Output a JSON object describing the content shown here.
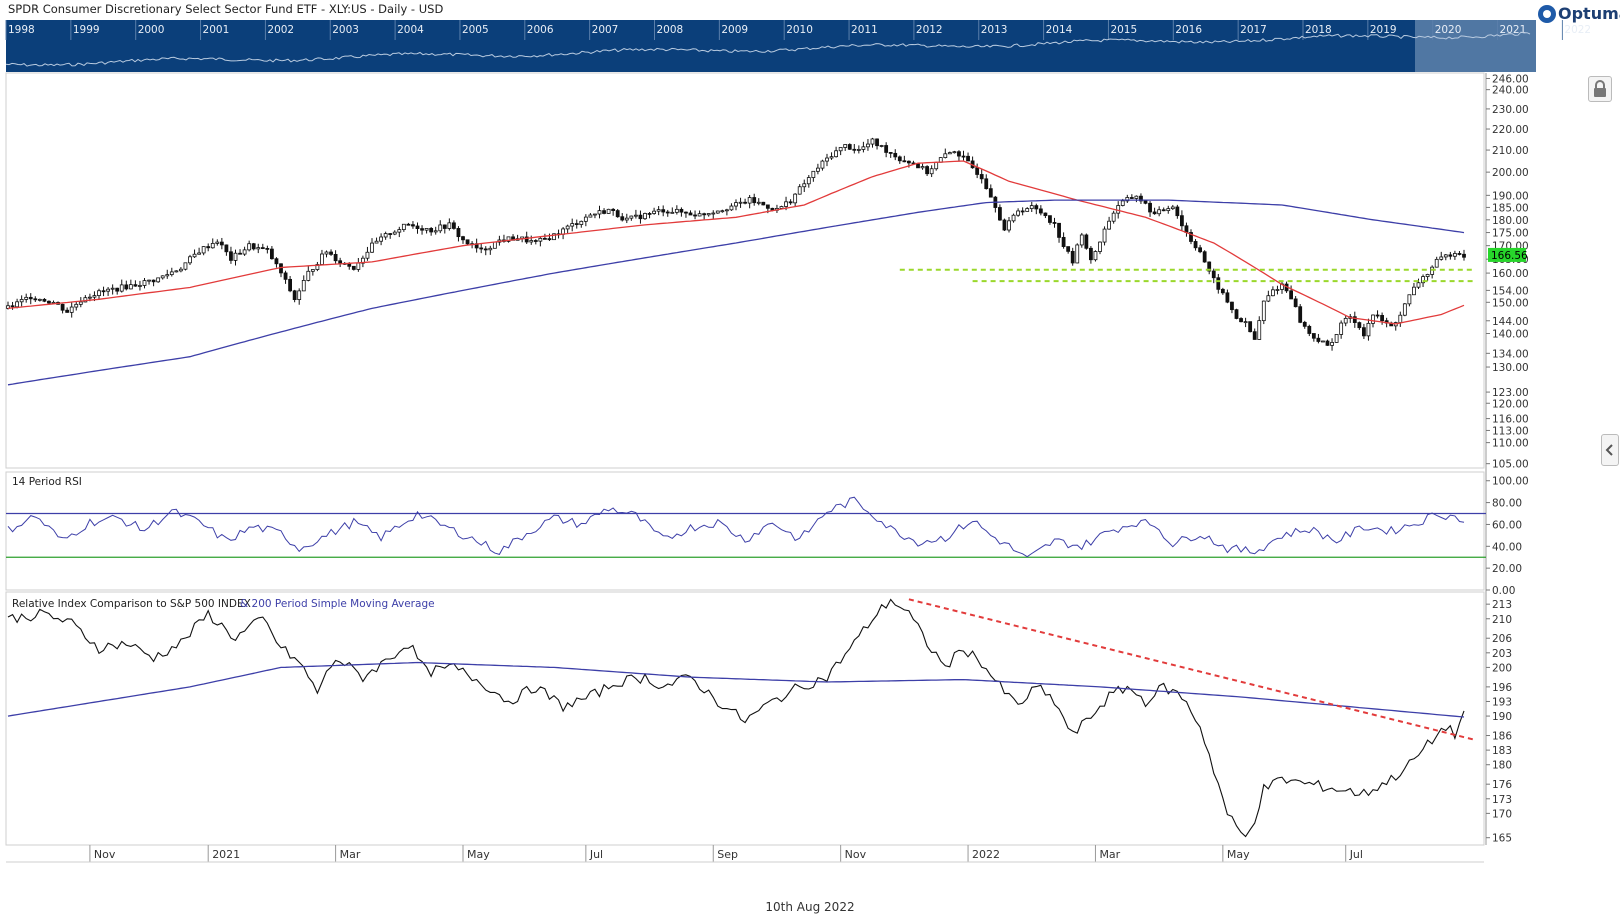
{
  "header": {
    "title": "SPDR Consumer Discretionary Select Sector Fund ETF - XLY:US - Daily - USD",
    "brand": "Optuma",
    "date": "10th Aug 2022"
  },
  "colors": {
    "navigator_bg": "#0b3f7a",
    "ma_fast": "#e23b3b",
    "ma_slow": "#3d3fa8",
    "price": "#111111",
    "support": "#9ad82b",
    "last_price_bg": "#27d62b",
    "rsi_upper": "#3d3fa8",
    "rsi_lower": "#2ea02e",
    "trend": "#e23b3b",
    "grid": "#e8e8e8"
  },
  "navigator": {
    "years": [
      "1998",
      "1999",
      "2000",
      "2001",
      "2002",
      "2003",
      "2004",
      "2005",
      "2006",
      "2007",
      "2008",
      "2009",
      "2010",
      "2011",
      "2012",
      "2013",
      "2014",
      "2015",
      "2016",
      "2017",
      "2018",
      "2019",
      "2020",
      "2021",
      "2022"
    ]
  },
  "chart_data": [
    {
      "type": "candlestick",
      "panel": "price",
      "title": "SPDR Consumer Discretionary Select Sector Fund ETF - XLY:US - Daily - USD",
      "y_scale": "log",
      "ylim": [
        104,
        249
      ],
      "y_ticks": [
        "246.00",
        "240.00",
        "230.00",
        "220.00",
        "210.00",
        "200.00",
        "190.00",
        "185.00",
        "180.00",
        "175.00",
        "170.00",
        "165.00",
        "160.00",
        "154.00",
        "150.00",
        "144.00",
        "140.00",
        "134.00",
        "130.00",
        "123.00",
        "120.00",
        "116.00",
        "113.00",
        "110.00",
        "105.00"
      ],
      "x_labels": [
        "Nov",
        "2021",
        "Mar",
        "May",
        "Jul",
        "Sep",
        "Nov",
        "2022",
        "Mar",
        "May",
        "Jul"
      ],
      "last_price": "166.56",
      "close_points": [
        [
          0,
          148
        ],
        [
          5,
          152
        ],
        [
          10,
          150
        ],
        [
          13,
          147
        ],
        [
          17,
          152
        ],
        [
          22,
          154
        ],
        [
          28,
          156
        ],
        [
          33,
          158
        ],
        [
          38,
          162
        ],
        [
          42,
          168
        ],
        [
          46,
          172
        ],
        [
          49,
          165
        ],
        [
          53,
          170
        ],
        [
          57,
          168
        ],
        [
          60,
          160
        ],
        [
          63,
          151
        ],
        [
          66,
          160
        ],
        [
          70,
          168
        ],
        [
          73,
          164
        ],
        [
          76,
          162
        ],
        [
          80,
          170
        ],
        [
          84,
          175
        ],
        [
          88,
          178
        ],
        [
          93,
          176
        ],
        [
          97,
          178
        ],
        [
          100,
          172
        ],
        [
          104,
          168
        ],
        [
          108,
          172
        ],
        [
          112,
          173
        ],
        [
          116,
          171
        ],
        [
          120,
          174
        ],
        [
          124,
          178
        ],
        [
          128,
          182
        ],
        [
          132,
          184
        ],
        [
          136,
          180
        ],
        [
          140,
          182
        ],
        [
          144,
          184
        ],
        [
          148,
          183
        ],
        [
          152,
          182
        ],
        [
          156,
          184
        ],
        [
          160,
          186
        ],
        [
          163,
          188
        ],
        [
          166,
          186
        ],
        [
          169,
          184
        ],
        [
          172,
          188
        ],
        [
          175,
          195
        ],
        [
          178,
          202
        ],
        [
          181,
          208
        ],
        [
          184,
          212
        ],
        [
          187,
          210
        ],
        [
          190,
          214
        ],
        [
          193,
          210
        ],
        [
          196,
          206
        ],
        [
          199,
          204
        ],
        [
          202,
          200
        ],
        [
          205,
          206
        ],
        [
          208,
          210
        ],
        [
          211,
          204
        ],
        [
          214,
          198
        ],
        [
          217,
          186
        ],
        [
          219,
          176
        ],
        [
          222,
          184
        ],
        [
          225,
          185
        ],
        [
          228,
          182
        ],
        [
          230,
          178
        ],
        [
          232,
          170
        ],
        [
          234,
          164
        ],
        [
          236,
          175
        ],
        [
          238,
          164
        ],
        [
          240,
          172
        ],
        [
          242,
          180
        ],
        [
          244,
          186
        ],
        [
          246,
          188
        ],
        [
          248,
          190
        ],
        [
          250,
          186
        ],
        [
          252,
          182
        ],
        [
          254,
          184
        ],
        [
          256,
          186
        ],
        [
          258,
          178
        ],
        [
          260,
          172
        ],
        [
          262,
          168
        ],
        [
          264,
          160
        ],
        [
          266,
          155
        ],
        [
          268,
          150
        ],
        [
          270,
          145
        ],
        [
          272,
          143
        ],
        [
          274,
          138
        ],
        [
          276,
          150
        ],
        [
          278,
          154
        ],
        [
          280,
          156
        ],
        [
          282,
          152
        ],
        [
          284,
          144
        ],
        [
          286,
          140
        ],
        [
          288,
          138
        ],
        [
          290,
          136
        ],
        [
          292,
          140
        ],
        [
          294,
          145
        ],
        [
          296,
          144
        ],
        [
          298,
          140
        ],
        [
          300,
          146
        ],
        [
          302,
          144
        ],
        [
          304,
          142
        ],
        [
          306,
          146
        ],
        [
          308,
          152
        ],
        [
          310,
          157
        ],
        [
          312,
          160
        ],
        [
          314,
          164
        ],
        [
          316,
          166
        ],
        [
          318,
          168
        ],
        [
          320,
          166.56
        ]
      ],
      "ma50_points": [
        [
          0,
          148
        ],
        [
          20,
          151
        ],
        [
          40,
          155
        ],
        [
          60,
          162
        ],
        [
          80,
          164
        ],
        [
          100,
          170
        ],
        [
          120,
          174
        ],
        [
          140,
          178
        ],
        [
          160,
          181
        ],
        [
          175,
          186
        ],
        [
          190,
          198
        ],
        [
          200,
          204
        ],
        [
          210,
          205
        ],
        [
          220,
          196
        ],
        [
          235,
          188
        ],
        [
          250,
          181
        ],
        [
          265,
          171
        ],
        [
          280,
          156
        ],
        [
          295,
          145
        ],
        [
          305,
          143
        ],
        [
          315,
          146
        ],
        [
          320,
          149
        ]
      ],
      "ma200_points": [
        [
          0,
          125
        ],
        [
          40,
          133
        ],
        [
          80,
          148
        ],
        [
          120,
          160
        ],
        [
          160,
          171
        ],
        [
          200,
          183
        ],
        [
          215,
          187
        ],
        [
          230,
          188
        ],
        [
          255,
          188
        ],
        [
          280,
          186
        ],
        [
          300,
          180
        ],
        [
          320,
          175
        ]
      ],
      "support_levels": [
        {
          "value": 161.2,
          "from": 196,
          "to": 322
        },
        {
          "value": 157.2,
          "from": 212,
          "to": 322
        }
      ]
    },
    {
      "type": "line",
      "panel": "rsi",
      "title": "14 Period RSI",
      "ylim": [
        0,
        108
      ],
      "y_ticks": [
        "100.00",
        "80.00",
        "60.00",
        "40.00",
        "20.00",
        "0.00"
      ],
      "upper_band": 70,
      "lower_band": 30,
      "points": [
        [
          0,
          55
        ],
        [
          6,
          68
        ],
        [
          12,
          45
        ],
        [
          18,
          62
        ],
        [
          24,
          66
        ],
        [
          30,
          55
        ],
        [
          36,
          72
        ],
        [
          42,
          62
        ],
        [
          48,
          45
        ],
        [
          54,
          58
        ],
        [
          60,
          52
        ],
        [
          64,
          38
        ],
        [
          70,
          50
        ],
        [
          76,
          62
        ],
        [
          82,
          48
        ],
        [
          90,
          70
        ],
        [
          96,
          58
        ],
        [
          102,
          47
        ],
        [
          108,
          35
        ],
        [
          114,
          52
        ],
        [
          120,
          66
        ],
        [
          126,
          60
        ],
        [
          132,
          75
        ],
        [
          138,
          68
        ],
        [
          144,
          46
        ],
        [
          150,
          57
        ],
        [
          156,
          62
        ],
        [
          162,
          46
        ],
        [
          168,
          62
        ],
        [
          174,
          46
        ],
        [
          180,
          72
        ],
        [
          186,
          82
        ],
        [
          190,
          70
        ],
        [
          194,
          56
        ],
        [
          200,
          44
        ],
        [
          206,
          48
        ],
        [
          212,
          64
        ],
        [
          216,
          50
        ],
        [
          220,
          40
        ],
        [
          224,
          28
        ],
        [
          230,
          45
        ],
        [
          236,
          40
        ],
        [
          242,
          54
        ],
        [
          248,
          62
        ],
        [
          252,
          60
        ],
        [
          256,
          42
        ],
        [
          262,
          52
        ],
        [
          268,
          38
        ],
        [
          274,
          35
        ],
        [
          280,
          50
        ],
        [
          286,
          56
        ],
        [
          292,
          45
        ],
        [
          298,
          58
        ],
        [
          304,
          54
        ],
        [
          310,
          62
        ],
        [
          314,
          70
        ],
        [
          318,
          67
        ],
        [
          320,
          63
        ]
      ]
    },
    {
      "type": "line",
      "panel": "relative",
      "title": "Relative Index Comparison to S&P 500 INDEX",
      "title_suffix": "& 200 Period Simple Moving Average",
      "ylim": [
        163.5,
        215.5
      ],
      "y_ticks": [
        "213",
        "210",
        "206",
        "203",
        "200",
        "196",
        "193",
        "190",
        "186",
        "183",
        "180",
        "176",
        "173",
        "170",
        "165"
      ],
      "points": [
        [
          0,
          210
        ],
        [
          8,
          211
        ],
        [
          14,
          209
        ],
        [
          20,
          204
        ],
        [
          26,
          205
        ],
        [
          32,
          202
        ],
        [
          38,
          205
        ],
        [
          44,
          211
        ],
        [
          50,
          206
        ],
        [
          56,
          210
        ],
        [
          60,
          204
        ],
        [
          64,
          201
        ],
        [
          68,
          195
        ],
        [
          72,
          202
        ],
        [
          78,
          198
        ],
        [
          84,
          202
        ],
        [
          88,
          205
        ],
        [
          92,
          199
        ],
        [
          98,
          200
        ],
        [
          104,
          197
        ],
        [
          110,
          193
        ],
        [
          116,
          196
        ],
        [
          122,
          192
        ],
        [
          128,
          194
        ],
        [
          134,
          197
        ],
        [
          140,
          198
        ],
        [
          144,
          196
        ],
        [
          150,
          198
        ],
        [
          156,
          193
        ],
        [
          162,
          189
        ],
        [
          168,
          193
        ],
        [
          174,
          196
        ],
        [
          180,
          198
        ],
        [
          186,
          205
        ],
        [
          190,
          210
        ],
        [
          194,
          214
        ],
        [
          198,
          211
        ],
        [
          202,
          205
        ],
        [
          206,
          200
        ],
        [
          210,
          204
        ],
        [
          214,
          201
        ],
        [
          218,
          196
        ],
        [
          222,
          192
        ],
        [
          226,
          196
        ],
        [
          230,
          193
        ],
        [
          234,
          186
        ],
        [
          238,
          190
        ],
        [
          242,
          194
        ],
        [
          246,
          196
        ],
        [
          250,
          193
        ],
        [
          254,
          196
        ],
        [
          258,
          194
        ],
        [
          262,
          188
        ],
        [
          264,
          182
        ],
        [
          266,
          176
        ],
        [
          268,
          170
        ],
        [
          270,
          167
        ],
        [
          272,
          165
        ],
        [
          274,
          169
        ],
        [
          276,
          175
        ],
        [
          280,
          177
        ],
        [
          286,
          176
        ],
        [
          292,
          175
        ],
        [
          298,
          174
        ],
        [
          304,
          177
        ],
        [
          308,
          180
        ],
        [
          312,
          184
        ],
        [
          316,
          188
        ],
        [
          318,
          186
        ],
        [
          320,
          191
        ]
      ],
      "sma200_points": [
        [
          0,
          190
        ],
        [
          40,
          196
        ],
        [
          60,
          200
        ],
        [
          90,
          201
        ],
        [
          120,
          200
        ],
        [
          150,
          198
        ],
        [
          180,
          197
        ],
        [
          210,
          197.5
        ],
        [
          240,
          196
        ],
        [
          270,
          194
        ],
        [
          300,
          191.5
        ],
        [
          320,
          189.8
        ]
      ],
      "trendline": [
        [
          198,
          214
        ],
        [
          322,
          185.2
        ]
      ]
    }
  ]
}
